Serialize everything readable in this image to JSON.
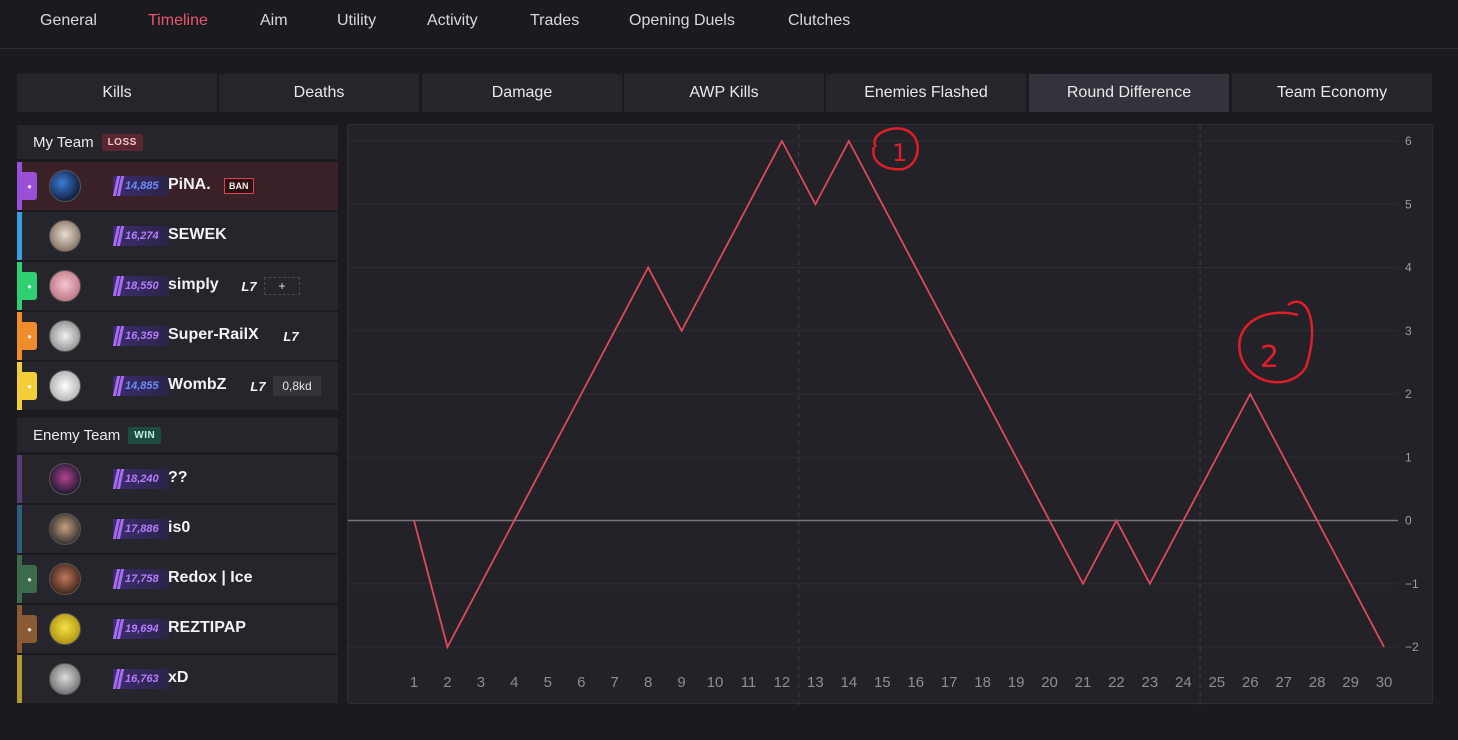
{
  "nav": {
    "items": [
      "General",
      "Timeline",
      "Aim",
      "Utility",
      "Activity",
      "Trades",
      "Opening Duels",
      "Clutches"
    ],
    "active": "Timeline"
  },
  "tabs": {
    "items": [
      "Kills",
      "Deaths",
      "Damage",
      "AWP Kills",
      "Enemies Flashed",
      "Round Difference",
      "Team Economy"
    ],
    "active": "Round Difference"
  },
  "my_team": {
    "label": "My Team",
    "result": "LOSS",
    "players": [
      {
        "name": "PiNA.",
        "elo": "14,885",
        "elo_color": "blue",
        "stripe": "#9b4fd9",
        "badge": "BAN"
      },
      {
        "name": "SEWEK",
        "elo": "16,274",
        "elo_color": "purple",
        "stripe": "#39a0e0"
      },
      {
        "name": "simply",
        "elo": "18,550",
        "elo_color": "purple",
        "stripe": "#2fcf72",
        "extra": "+"
      },
      {
        "name": "Super-RailX",
        "elo": "16,359",
        "elo_color": "purple",
        "stripe": "#ef8d2b"
      },
      {
        "name": "WombZ",
        "elo": "14,855",
        "elo_color": "blue",
        "stripe": "#f2cf3a",
        "kd": "0,8kd"
      }
    ]
  },
  "enemy_team": {
    "label": "Enemy Team",
    "result": "WIN",
    "players": [
      {
        "name": "??",
        "elo": "18,240",
        "elo_color": "purple",
        "stripe": "#5b3a78"
      },
      {
        "name": "is0",
        "elo": "17,886",
        "elo_color": "purple",
        "stripe": "#2f5d7d"
      },
      {
        "name": "Redox | Ice",
        "elo": "17,758",
        "elo_color": "purple",
        "stripe": "#3b6a4c"
      },
      {
        "name": "REZTIPAP",
        "elo": "19,694",
        "elo_color": "purple",
        "stripe": "#8a5a35"
      },
      {
        "name": "xD",
        "elo": "16,763",
        "elo_color": "purple",
        "stripe": "#b39a33"
      }
    ]
  },
  "annotations": [
    "1",
    "2"
  ],
  "chart_data": {
    "type": "line",
    "x": [
      1,
      2,
      3,
      4,
      5,
      6,
      7,
      8,
      9,
      10,
      11,
      12,
      13,
      14,
      15,
      16,
      17,
      18,
      19,
      20,
      21,
      22,
      23,
      24,
      25,
      26,
      27,
      28,
      29,
      30
    ],
    "series": [
      {
        "values": [
          0,
          -2,
          -1,
          0,
          1,
          2,
          3,
          4,
          3,
          4,
          5,
          6,
          5,
          6,
          5,
          4,
          3,
          2,
          1,
          0,
          -1,
          0,
          -1,
          0,
          1,
          2,
          1,
          0,
          -1,
          -2
        ]
      }
    ],
    "ylim": [
      -2,
      6
    ],
    "yticks": [
      6,
      5,
      4,
      3,
      2,
      1,
      0,
      -1,
      -2
    ],
    "ytick_labels": [
      "6",
      "5",
      "4",
      "3",
      "2",
      "1",
      "0",
      "−1",
      "−2"
    ],
    "half_markers": [
      12.5,
      24.5
    ],
    "line_color": "#e0485e",
    "grid": true,
    "zero_line": true
  }
}
